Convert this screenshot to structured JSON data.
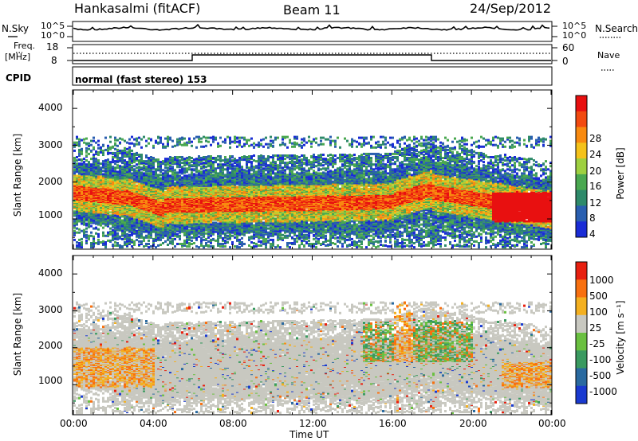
{
  "header": {
    "station": "Hankasalmi (fitACF)",
    "beam": "Beam 11",
    "date": "24/Sep/2012"
  },
  "top_panels": {
    "nsky_label": "N.Sky",
    "nsky_ticks": [
      "10^5",
      "10^0"
    ],
    "nsearch_label": "N.Search",
    "nsearch_ticks": [
      "10^5",
      "10^0"
    ],
    "freq_label_1": "Freq.",
    "freq_label_2": "[MHz]",
    "freq_ticks": [
      "18",
      "8"
    ],
    "nave_label": "Nave",
    "nave_ticks": [
      "60",
      "0"
    ],
    "cpid_label": "CPID",
    "cpid_text": "normal (fast stereo) 153"
  },
  "chart_data": [
    {
      "type": "heatmap",
      "name": "power",
      "ylabel": "Slant Range [km]",
      "yticks": [
        "4000",
        "3000",
        "2000",
        "1000"
      ],
      "ylim": [
        180,
        4500
      ],
      "xlim_hours": [
        0,
        24
      ],
      "xlabel": "Time UT",
      "xticks": [
        "00:00",
        "04:00",
        "08:00",
        "12:00",
        "16:00",
        "20:00",
        "00:00"
      ],
      "colorbar_label": "Power [dB]",
      "colorbar_ticks": [
        "28",
        "24",
        "20",
        "16",
        "12",
        "8",
        "4"
      ],
      "colorbar_range": [
        0,
        32
      ],
      "colors": [
        "#1a2cd6",
        "#2a5fb0",
        "#2e8a6a",
        "#4aa850",
        "#9ed040",
        "#f4c21a",
        "#f88a10",
        "#f24a10",
        "#e81010"
      ]
    },
    {
      "type": "heatmap",
      "name": "velocity",
      "ylabel": "Slant Range [km]",
      "yticks": [
        "4000",
        "3000",
        "2000",
        "1000"
      ],
      "ylim": [
        180,
        4500
      ],
      "xlim_hours": [
        0,
        24
      ],
      "colorbar_label": "Velocity [m s⁻¹]",
      "colorbar_ticks": [
        "1000",
        "500",
        "100",
        "25",
        "-25",
        "-100",
        "-500",
        "-1000"
      ],
      "colors": [
        "#1a3ad0",
        "#2a6aa0",
        "#3a9a60",
        "#6ac040",
        "#c8c8c0",
        "#f4b020",
        "#f87010",
        "#e82010"
      ]
    }
  ]
}
